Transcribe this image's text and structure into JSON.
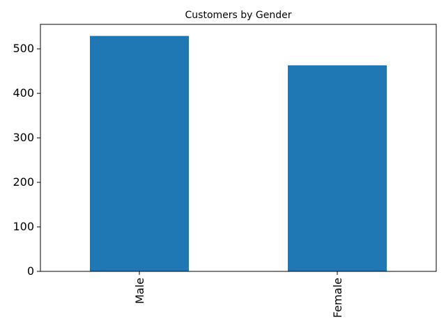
{
  "chart_data": {
    "type": "bar",
    "title": "Customers by Gender",
    "xlabel": "",
    "ylabel": "",
    "categories": [
      "Male",
      "Female"
    ],
    "values": [
      529,
      463
    ],
    "ylim": [
      0,
      555
    ],
    "yticks": [
      0,
      100,
      200,
      300,
      400,
      500
    ],
    "grid": false,
    "legend": "none",
    "bar_color": "#1f77b4",
    "axis_color": "#000000",
    "background": "#ffffff"
  }
}
